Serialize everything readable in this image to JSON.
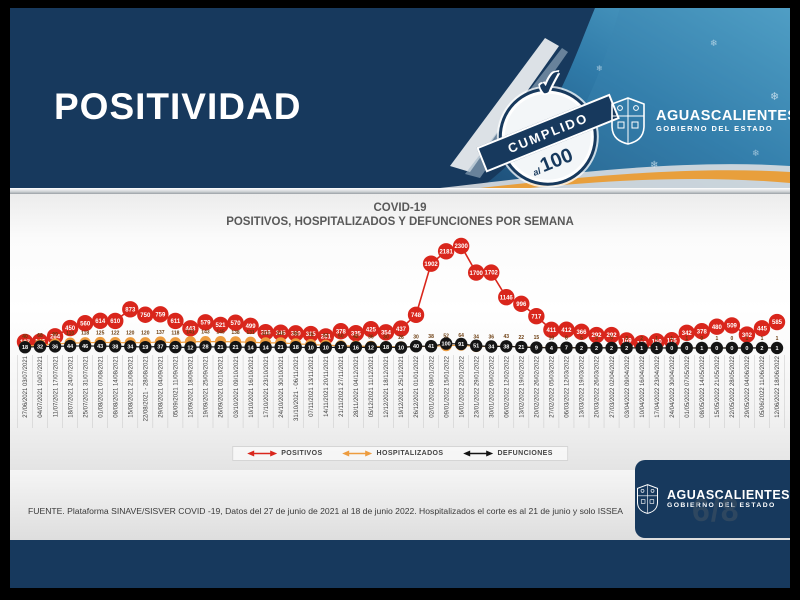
{
  "header": {
    "title": "POSITIVIDAD",
    "stamp": {
      "top": "CUMPLIDO",
      "mid": "al",
      "big": "100"
    }
  },
  "logo": {
    "title": "AGUASCALIENTES",
    "subtitle": "GOBIERNO DEL ESTADO"
  },
  "icons": {
    "snowflake": "❄",
    "check": "✔"
  },
  "chart": {
    "title_line1": "COVID-19",
    "title_line2": "POSITIVOS, HOSPITALIZADOS Y DEFUNCIONES POR SEMANA"
  },
  "chart_data": {
    "type": "line",
    "title": "COVID-19 POSITIVOS, HOSPITALIZADOS Y DEFUNCIONES POR SEMANA",
    "xlabel": "",
    "ylabel": "",
    "ylim": [
      0,
      2300
    ],
    "grid": "vertical-separators",
    "legend_position": "bottom",
    "point_labels": "shown",
    "categories": [
      "27/06/2021 03/07/2021",
      "04/07/2021 10/07/2021",
      "11/07/2021 17/07/2021",
      "18/07/2021 24/07/2021",
      "25/07/2021 31/07/2021",
      "01/08/2021 07/08/2021",
      "08/08/2021 14/08/2021",
      "15/08/2021 21/08/2021",
      "22/08/2021 - 28/08/2021",
      "29/08/2021 04/09/2021",
      "05/09/2021 11/09/2021",
      "12/09/2021 18/09/2021",
      "19/09/2021 25/09/2021",
      "26/09/2021 02/10/2021",
      "03/10/2021 09/10/2021",
      "10/10/2021 16/10/2021",
      "17/10/2021 23/10/2021",
      "24/10/2021 30/10/2021",
      "31/10/2021 - 06/11/2021",
      "07/11/2021 13/11/2021",
      "14/11/2021 20/11/2021",
      "21/11/2021 27/11/2021",
      "28/11/2021 04/12/2021",
      "05/12/2021 11/12/2021",
      "12/12/2021 18/12/2021",
      "19/12/2021 25/12/2021",
      "26/12/2021 01/01/2022",
      "02/01/2022 08/01/2022",
      "09/01/2022 15/01/2022",
      "16/01/2022 22/01/2022",
      "23/01/2022 29/01/2022",
      "30/01/2022 05/02/2022",
      "06/02/2022 12/02/2022",
      "13/02/2022 19/02/2022",
      "20/02/2022 26/02/2022",
      "27/02/2022 05/03/2022",
      "06/03/2022 12/03/2022",
      "13/03/2022 19/03/2022",
      "20/03/2022 26/03/2022",
      "27/03/2022 02/04/2022",
      "03/04/2022 09/04/2022",
      "10/04/2022 16/04/2022",
      "17/04/2022 23/04/2022",
      "24/04/2022 30/04/2022",
      "01/05/2022 07/05/2022",
      "08/05/2022 14/05/2022",
      "15/05/2022 21/05/2022",
      "22/05/2022 28/05/2022",
      "29/05/2022 04/06/2022",
      "05/06/2022 11/06/2022",
      "12/06/2022 18/06/2022"
    ],
    "series": [
      {
        "name": "POSITIVOS",
        "color": "#d9261c",
        "values": [
          137,
          146,
          264,
          450,
          560,
          614,
          610,
          873,
          750,
          759,
          611,
          443,
          579,
          521,
          570,
          499,
          356,
          345,
          330,
          315,
          261,
          378,
          335,
          425,
          354,
          437,
          748,
          1902,
          2181,
          2300,
          1700,
          1702,
          1146,
          996,
          717,
          411,
          412,
          366,
          292,
          292,
          169,
          109,
          150,
          175,
          342,
          378,
          480,
          509,
          302,
          445,
          585
        ]
      },
      {
        "name": "HOSPITALIZADOS",
        "color": "#ed9c3f",
        "values": [
          40,
          68,
          90,
          110,
          118,
          125,
          122,
          120,
          120,
          137,
          118,
          141,
          143,
          145,
          138,
          131,
          115,
          116,
          95,
          78,
          62,
          50,
          42,
          36,
          30,
          26,
          30,
          38,
          52,
          64,
          34,
          36,
          43,
          22,
          15,
          10,
          8,
          5,
          3,
          5,
          3,
          2,
          1,
          1,
          1,
          0,
          1,
          0,
          1,
          1,
          1
        ]
      },
      {
        "name": "DEFUNCIONES",
        "color": "#141414",
        "values": [
          18,
          32,
          36,
          44,
          46,
          43,
          38,
          34,
          19,
          37,
          20,
          12,
          28,
          21,
          21,
          14,
          14,
          21,
          18,
          10,
          10,
          17,
          16,
          12,
          18,
          10,
          40,
          41,
          100,
          91,
          51,
          34,
          38,
          21,
          9,
          4,
          7,
          2,
          2,
          2,
          2,
          1,
          1,
          0,
          0,
          1,
          0,
          0,
          0,
          2,
          1
        ]
      }
    ]
  },
  "footer": {
    "source": "FUENTE. Plataforma SINAVE/SISVER COVID -19, Datos del 27 de junio de 2021 al 18 de junio 2022.  Hospitalizados el corte es al 21 de junio y solo ISSEA",
    "watermark": "6/8"
  }
}
